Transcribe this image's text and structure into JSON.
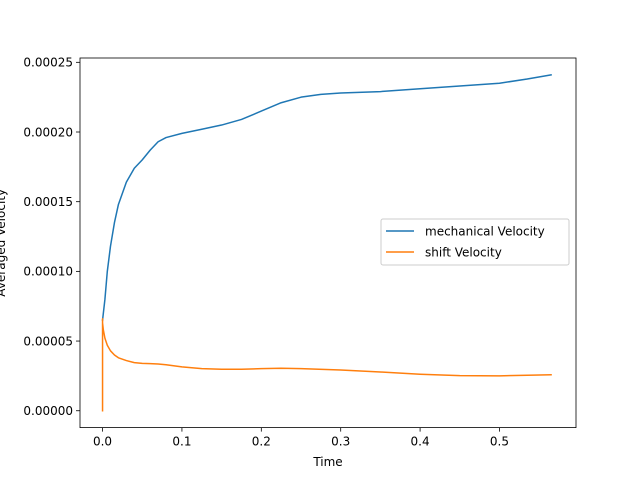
{
  "chart_data": {
    "type": "line",
    "xlabel": "Time",
    "ylabel": "Averaged Velocity",
    "xlim": [
      -0.0284,
      0.5964
    ],
    "ylim": [
      -1.21e-05,
      0.0002531
    ],
    "x_ticks": [
      0.0,
      0.1,
      0.2,
      0.3,
      0.4,
      0.5
    ],
    "x_tick_labels": [
      "0.0",
      "0.1",
      "0.2",
      "0.3",
      "0.4",
      "0.5"
    ],
    "y_ticks": [
      0.0,
      5e-05,
      0.0001,
      0.00015,
      0.0002,
      0.00025
    ],
    "y_tick_labels": [
      "0.00000",
      "0.00005",
      "0.00010",
      "0.00015",
      "0.00020",
      "0.00025"
    ],
    "grid": false,
    "legend_position": "center right",
    "series": [
      {
        "name": "mechanical Velocity",
        "color": "#1f77b4",
        "x": [
          0.0,
          0.003,
          0.006,
          0.01,
          0.015,
          0.02,
          0.03,
          0.04,
          0.05,
          0.06,
          0.07,
          0.08,
          0.1,
          0.125,
          0.15,
          0.175,
          0.2,
          0.225,
          0.25,
          0.275,
          0.3,
          0.35,
          0.4,
          0.45,
          0.5,
          0.535,
          0.565
        ],
        "y": [
          6.5e-05,
          8e-05,
          0.0001,
          0.000118,
          0.000135,
          0.000148,
          0.000164,
          0.000174,
          0.00018,
          0.000187,
          0.000193,
          0.000196,
          0.000199,
          0.000202,
          0.000205,
          0.000209,
          0.000215,
          0.000221,
          0.000225,
          0.000227,
          0.000228,
          0.000229,
          0.000231,
          0.000233,
          0.000235,
          0.000238,
          0.000241
        ]
      },
      {
        "name": "shift Velocity",
        "color": "#ff7f0e",
        "x": [
          0.0,
          0.0,
          0.0,
          0.001,
          0.003,
          0.006,
          0.01,
          0.015,
          0.02,
          0.03,
          0.04,
          0.05,
          0.06,
          0.07,
          0.08,
          0.1,
          0.125,
          0.15,
          0.175,
          0.2,
          0.225,
          0.25,
          0.3,
          0.35,
          0.4,
          0.45,
          0.5,
          0.535,
          0.565
        ],
        "y": [
          0.0,
          6.6e-05,
          6.3e-05,
          5.8e-05,
          5.2e-05,
          4.7e-05,
          4.3e-05,
          4e-05,
          3.8e-05,
          3.6e-05,
          3.45e-05,
          3.4e-05,
          3.38e-05,
          3.35e-05,
          3.3e-05,
          3.15e-05,
          3.02e-05,
          2.98e-05,
          2.98e-05,
          3.02e-05,
          3.05e-05,
          3.02e-05,
          2.92e-05,
          2.78e-05,
          2.62e-05,
          2.52e-05,
          2.5e-05,
          2.55e-05,
          2.58e-05
        ]
      }
    ]
  }
}
